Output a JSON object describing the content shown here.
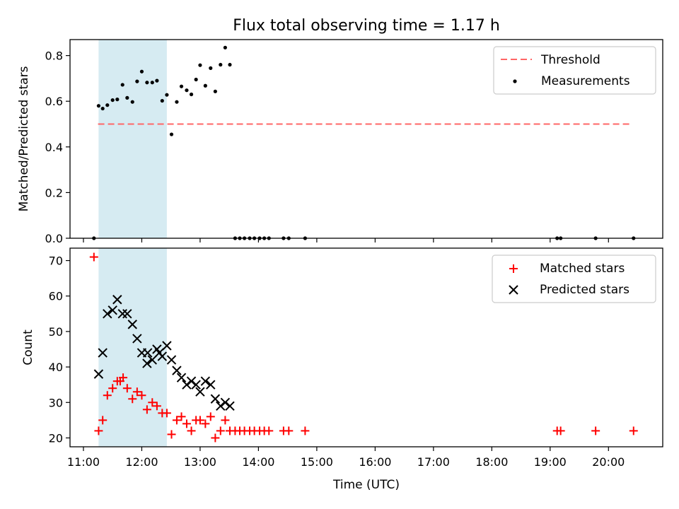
{
  "chart_data": [
    {
      "type": "scatter",
      "panel": "top",
      "title": "Flux total observing time = 1.17 h",
      "ylabel": "Matched/Predicted stars",
      "xlabel": "",
      "ylim": [
        0,
        0.87
      ],
      "xlim_hours": [
        10.77,
        20.93
      ],
      "yticks": [
        0.0,
        0.2,
        0.4,
        0.6,
        0.8
      ],
      "ytick_labels": [
        "0.0",
        "0.2",
        "0.4",
        "0.6",
        "0.8"
      ],
      "shaded_span": {
        "x_start": 11.26,
        "x_end": 12.43,
        "color": "#add8e6"
      },
      "threshold": {
        "label": "Threshold",
        "value": 0.5,
        "x_start": 11.25,
        "x_end": 20.4,
        "color": "#ff6666",
        "style": "dashed"
      },
      "legend": {
        "position": "upper right",
        "entries": [
          "Threshold",
          "Measurements"
        ]
      },
      "series": [
        {
          "name": "Measurements",
          "color": "#000000",
          "marker": "dot",
          "x": [
            11.18,
            11.26,
            11.33,
            11.41,
            11.5,
            11.58,
            11.67,
            11.75,
            11.84,
            11.92,
            12.0,
            12.09,
            12.18,
            12.26,
            12.35,
            12.43,
            12.51,
            12.6,
            12.68,
            12.77,
            12.85,
            12.93,
            13.0,
            13.09,
            13.18,
            13.26,
            13.35,
            13.43,
            13.51,
            13.6,
            13.68,
            13.76,
            13.85,
            13.93,
            14.02,
            14.1,
            14.18,
            14.43,
            14.52,
            14.8,
            19.12,
            19.18,
            19.78,
            20.43
          ],
          "y": [
            0.0,
            0.58,
            0.568,
            0.583,
            0.605,
            0.608,
            0.672,
            0.615,
            0.597,
            0.687,
            0.73,
            0.682,
            0.682,
            0.69,
            0.602,
            0.628,
            0.455,
            0.597,
            0.665,
            0.648,
            0.63,
            0.695,
            0.758,
            0.668,
            0.745,
            0.643,
            0.76,
            0.835,
            0.76,
            0.0,
            0.0,
            0.0,
            0.0,
            0.0,
            0.0,
            0.0,
            0.0,
            0.0,
            0.0,
            0.0,
            0.0,
            0.0,
            0.0,
            0.0
          ]
        }
      ]
    },
    {
      "type": "scatter",
      "panel": "bottom",
      "ylabel": "Count",
      "xlabel": "Time (UTC)",
      "ylim": [
        17.5,
        73.5
      ],
      "xlim_hours": [
        10.77,
        20.93
      ],
      "yticks": [
        20,
        30,
        40,
        50,
        60,
        70
      ],
      "ytick_labels": [
        "20",
        "30",
        "40",
        "50",
        "60",
        "70"
      ],
      "xticks": [
        11,
        12,
        13,
        14,
        15,
        16,
        17,
        18,
        19,
        20
      ],
      "xtick_labels": [
        "11:00",
        "12:00",
        "13:00",
        "14:00",
        "15:00",
        "16:00",
        "17:00",
        "18:00",
        "19:00",
        "20:00"
      ],
      "shaded_span": {
        "x_start": 11.26,
        "x_end": 12.43,
        "color": "#add8e6"
      },
      "legend": {
        "position": "upper right",
        "entries": [
          "Matched stars",
          "Predicted stars"
        ]
      },
      "series": [
        {
          "name": "Matched stars",
          "color": "#ff0000",
          "marker": "plus",
          "x": [
            11.18,
            11.26,
            11.33,
            11.41,
            11.5,
            11.58,
            11.63,
            11.68,
            11.75,
            11.84,
            11.92,
            12.0,
            12.09,
            12.18,
            12.26,
            12.35,
            12.43,
            12.51,
            12.6,
            12.68,
            12.77,
            12.85,
            12.93,
            13.0,
            13.09,
            13.18,
            13.26,
            13.35,
            13.43,
            13.51,
            13.6,
            13.68,
            13.76,
            13.85,
            13.93,
            14.02,
            14.1,
            14.18,
            14.43,
            14.52,
            14.8,
            19.12,
            19.18,
            19.78,
            20.43
          ],
          "y": [
            71,
            22,
            25,
            32,
            34,
            36,
            36,
            37,
            34,
            31,
            33,
            32,
            28,
            30,
            29,
            27,
            27,
            21,
            25,
            26,
            24,
            22,
            25,
            25,
            24,
            26,
            20,
            22,
            25,
            22,
            22,
            22,
            22,
            22,
            22,
            22,
            22,
            22,
            22,
            22,
            22,
            22,
            22,
            22,
            22
          ]
        },
        {
          "name": "Predicted stars",
          "color": "#000000",
          "marker": "x",
          "x": [
            11.26,
            11.33,
            11.41,
            11.5,
            11.58,
            11.67,
            11.75,
            11.84,
            11.92,
            12.0,
            12.09,
            12.1,
            12.18,
            12.26,
            12.3,
            12.35,
            12.43,
            12.51,
            12.6,
            12.68,
            12.77,
            12.85,
            12.93,
            13.0,
            13.09,
            13.18,
            13.26,
            13.35,
            13.43,
            13.51
          ],
          "y": [
            38,
            44,
            55,
            56,
            59,
            55,
            55,
            52,
            48,
            44,
            41,
            44,
            42,
            45,
            44,
            43,
            46,
            42,
            39,
            37,
            35,
            36,
            35,
            33,
            36,
            35,
            31,
            29,
            30,
            29
          ]
        }
      ]
    }
  ]
}
